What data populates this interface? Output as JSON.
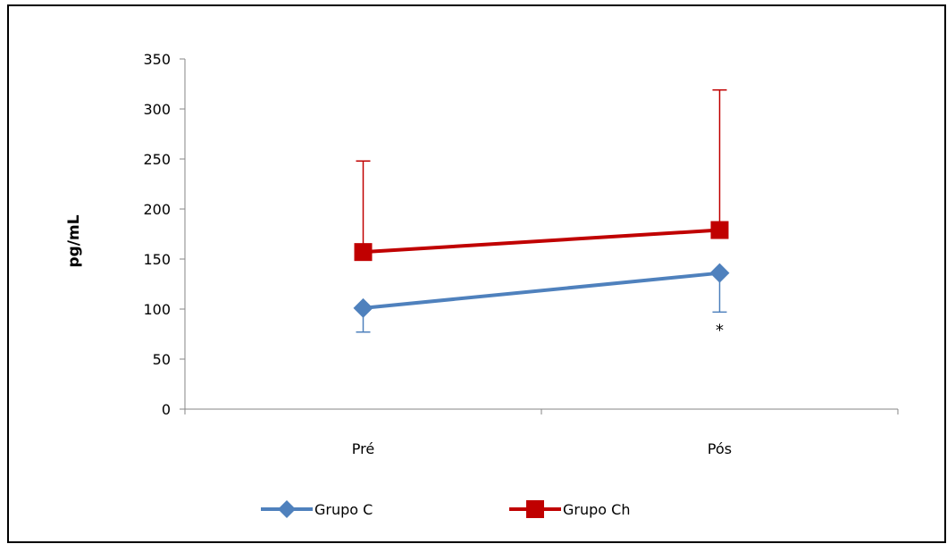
{
  "chart_data": {
    "type": "line",
    "title": "",
    "xlabel": "",
    "ylabel": "pg/mL",
    "categories": [
      "Pré",
      "Pós"
    ],
    "ylim": [
      0,
      350
    ],
    "yticks": [
      0,
      50,
      100,
      150,
      200,
      250,
      300,
      350
    ],
    "grid": false,
    "legend_position": "bottom",
    "series": [
      {
        "name": "Grupo C",
        "values": [
          101,
          136
        ],
        "error_upper": [
          null,
          null
        ],
        "error_lower": [
          24,
          39
        ],
        "color": "#4F81BD",
        "marker": "diamond"
      },
      {
        "name": "Grupo Ch",
        "values": [
          157,
          179
        ],
        "error_upper": [
          91,
          140
        ],
        "error_lower": [
          null,
          null
        ],
        "color": "#C00000",
        "marker": "square"
      }
    ],
    "annotations": [
      {
        "text": "*",
        "category": "Pós",
        "value": 86
      }
    ]
  }
}
